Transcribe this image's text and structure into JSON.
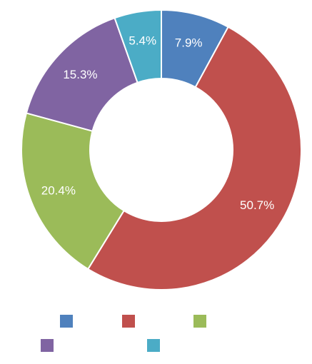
{
  "chart_data": {
    "type": "pie",
    "style": "donut",
    "categories": [
      "",
      "",
      "",
      "",
      ""
    ],
    "values": [
      7.9,
      50.7,
      20.4,
      15.3,
      5.4
    ],
    "labels": [
      "7.9%",
      "50.7%",
      "20.4%",
      "15.3%",
      "5.4%"
    ],
    "colors": [
      "#4f81bd",
      "#c0504d",
      "#9bbb59",
      "#8064a2",
      "#4bacc6"
    ],
    "title": "",
    "legend_position": "bottom",
    "start_angle": "top",
    "direction": "clockwise"
  }
}
